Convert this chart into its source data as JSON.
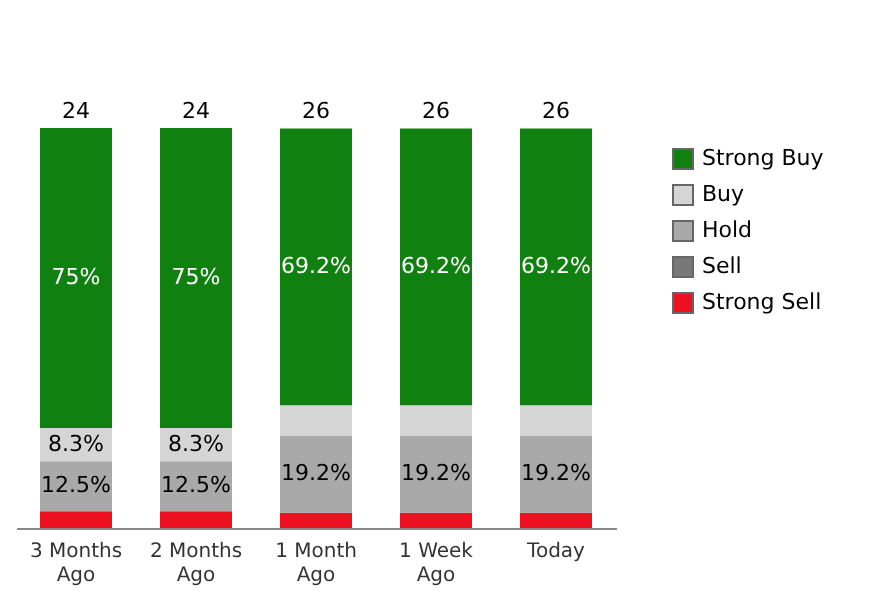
{
  "chart_data": {
    "type": "bar",
    "stacked": true,
    "legend": "right",
    "categories": [
      "3 Months\nAgo",
      "2 Months\nAgo",
      "1 Month\nAgo",
      "1 Week\nAgo",
      "Today"
    ],
    "series": [
      {
        "name": "Strong Sell",
        "color": "#ee1122",
        "values": [
          4.2,
          4.2,
          3.8,
          3.8,
          3.8
        ],
        "value_labels": [
          null,
          null,
          null,
          null,
          null
        ]
      },
      {
        "name": "Sell",
        "color": "#787878",
        "values": [
          0,
          0,
          0,
          0,
          0
        ],
        "value_labels": [
          null,
          null,
          null,
          null,
          null
        ]
      },
      {
        "name": "Hold",
        "color": "#a9a9a9",
        "values": [
          12.5,
          12.5,
          19.2,
          19.2,
          19.2
        ],
        "value_labels": [
          "12.5%",
          "12.5%",
          "19.2%",
          "19.2%",
          "19.2%"
        ]
      },
      {
        "name": "Buy",
        "color": "#d5d5d5",
        "values": [
          8.3,
          8.3,
          7.7,
          7.7,
          7.7
        ],
        "value_labels": [
          "8.3%",
          "8.3%",
          null,
          null,
          null
        ]
      },
      {
        "name": "Strong Buy",
        "color": "#108010",
        "values": [
          75,
          75,
          69.2,
          69.2,
          69.2
        ],
        "value_labels": [
          "75%",
          "75%",
          "69.2%",
          "69.2%",
          "69.2%"
        ]
      }
    ],
    "annotations": [
      {
        "text": "24",
        "x": "3 Months\nAgo",
        "y": 100
      },
      {
        "text": "24",
        "x": "2 Months\nAgo",
        "y": 100
      },
      {
        "text": "26",
        "x": "1 Month\nAgo",
        "y": 100
      },
      {
        "text": "26",
        "x": "1 Week\nAgo",
        "y": 100
      },
      {
        "text": "26",
        "x": "Today",
        "y": 100
      }
    ]
  }
}
